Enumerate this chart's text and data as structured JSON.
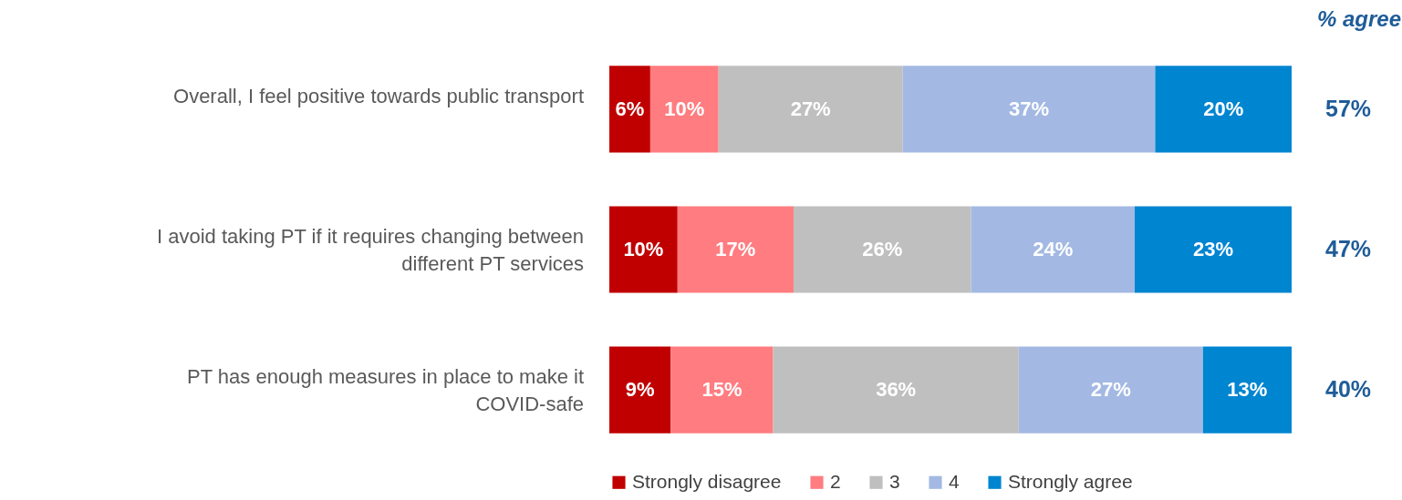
{
  "chart_data": {
    "type": "bar",
    "orientation": "horizontal",
    "stacked": true,
    "legend": "bottom",
    "categories": [
      "Overall, I feel positive towards public transport",
      "I avoid taking PT if it requires changing between different PT services",
      "PT has enough measures in place to make it COVID-safe"
    ],
    "series": [
      {
        "name": "Strongly disagree",
        "color": "#c00000",
        "values": [
          6,
          10,
          9
        ],
        "value_labels": [
          "6%",
          "10%",
          "9%"
        ]
      },
      {
        "name": "2",
        "color": "#ff7c80",
        "values": [
          10,
          17,
          15
        ],
        "value_labels": [
          "10%",
          "17%",
          "15%"
        ]
      },
      {
        "name": "3",
        "color": "#bfbfbf",
        "values": [
          27,
          26,
          36
        ],
        "value_labels": [
          "27%",
          "26%",
          "36%"
        ]
      },
      {
        "name": "4",
        "color": "#a3b9e3",
        "values": [
          37,
          24,
          27
        ],
        "value_labels": [
          "37%",
          "24%",
          "27%"
        ]
      },
      {
        "name": "Strongly agree",
        "color": "#0085d1",
        "values": [
          20,
          23,
          13
        ],
        "value_labels": [
          "20%",
          "23%",
          "13%"
        ]
      }
    ],
    "annotations": [
      "% agree",
      "57%",
      "47%",
      "40%"
    ]
  }
}
